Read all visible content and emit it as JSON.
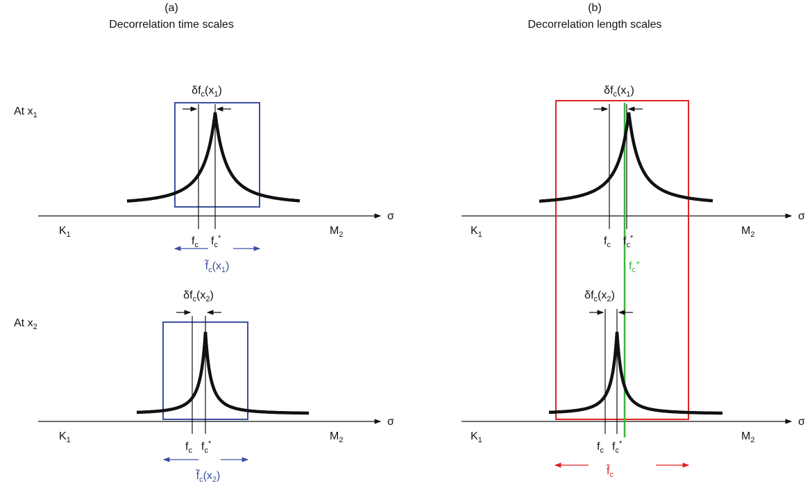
{
  "panels": [
    {
      "letter": "(a)",
      "title": "Decorrelation time scales",
      "plots": [
        {
          "delta": [
            {
              "text": "δf"
            },
            {
              "sub": "c"
            },
            {
              "text": "(x"
            },
            {
              "sub": "1"
            },
            {
              "text": ")"
            }
          ],
          "fc": [
            {
              "text": "f"
            },
            {
              "sub": "c"
            }
          ],
          "fstar": [
            {
              "text": "f"
            },
            {
              "sub": "c"
            },
            {
              "sup": "*"
            }
          ],
          "band": [
            {
              "text": "f̃"
            },
            {
              "sub": "c"
            },
            {
              "text": "(x"
            },
            {
              "sub": "1"
            },
            {
              "text": ")"
            }
          ]
        },
        {
          "delta": [
            {
              "text": "δf"
            },
            {
              "sub": "c"
            },
            {
              "text": "(x"
            },
            {
              "sub": "2"
            },
            {
              "text": ")"
            }
          ],
          "fc": [
            {
              "text": "f"
            },
            {
              "sub": "c"
            }
          ],
          "fstar": [
            {
              "text": "f"
            },
            {
              "sub": "c"
            },
            {
              "sup": "*"
            }
          ],
          "band": [
            {
              "text": "f̃"
            },
            {
              "sub": "c"
            },
            {
              "text": "(x"
            },
            {
              "sub": "2"
            },
            {
              "text": ")"
            }
          ]
        }
      ]
    },
    {
      "letter": "(b)",
      "title": "Decorrelation length scales",
      "plots": [
        {
          "delta": [
            {
              "text": "δf"
            },
            {
              "sub": "c"
            },
            {
              "text": "(x"
            },
            {
              "sub": "1"
            },
            {
              "text": ")"
            }
          ],
          "fc": [
            {
              "text": "f"
            },
            {
              "sub": "c"
            }
          ],
          "fstar": [
            {
              "text": "f"
            },
            {
              "sub": "c"
            },
            {
              "sup": "*"
            }
          ],
          "plus": [
            {
              "text": "f"
            },
            {
              "sub": "c"
            },
            {
              "sup": "+"
            }
          ]
        },
        {
          "delta": [
            {
              "text": "δf"
            },
            {
              "sub": "c"
            },
            {
              "text": "(x"
            },
            {
              "sub": "2"
            },
            {
              "text": ")"
            }
          ],
          "fc": [
            {
              "text": "f"
            },
            {
              "sub": "c"
            }
          ],
          "fstar": [
            {
              "text": "f"
            },
            {
              "sub": "c"
            },
            {
              "sup": "*"
            }
          ],
          "band": [
            {
              "text": "f̂"
            },
            {
              "sub": "c"
            }
          ]
        }
      ]
    }
  ],
  "row_labels": [
    [
      {
        "text": "At x"
      },
      {
        "sub": "1"
      }
    ],
    [
      {
        "text": "At x"
      },
      {
        "sub": "2"
      }
    ]
  ],
  "axis": {
    "sigma": "σ",
    "left": [
      {
        "text": "K"
      },
      {
        "sub": "1"
      }
    ],
    "right": [
      {
        "text": "M"
      },
      {
        "sub": "2"
      }
    ]
  }
}
